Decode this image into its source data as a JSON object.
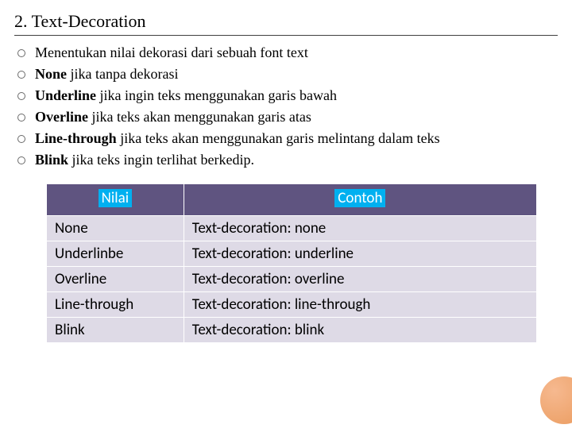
{
  "heading": "2. Text-Decoration",
  "bullets": [
    {
      "bold": "",
      "rest": "Menentukan nilai dekorasi dari sebuah font text"
    },
    {
      "bold": "None",
      "rest": " jika tanpa dekorasi"
    },
    {
      "bold": "Underline",
      "rest": " jika ingin teks menggunakan garis bawah"
    },
    {
      "bold": "Overline",
      "rest": " jika teks akan menggunakan garis atas"
    },
    {
      "bold": "Line-through",
      "rest": " jika teks akan menggunakan garis melintang dalam teks"
    },
    {
      "bold": "Blink",
      "rest": " jika teks ingin terlihat berkedip."
    }
  ],
  "table": {
    "header_nilai": "Nilai",
    "header_contoh": "Contoh",
    "rows": [
      {
        "nilai": "None",
        "contoh": "Text-decoration: none"
      },
      {
        "nilai": "Underlinbe",
        "contoh": "Text-decoration: underline"
      },
      {
        "nilai": "Overline",
        "contoh": "Text-decoration: overline"
      },
      {
        "nilai": "Line-through",
        "contoh": "Text-decoration: line-through"
      },
      {
        "nilai": "Blink",
        "contoh": "Text-decoration: blink"
      }
    ]
  },
  "colors": {
    "header_bg": "#5f5480",
    "highlight": "#00b0f0",
    "row_bg": "#dedae6",
    "accent": "#e8904c"
  }
}
